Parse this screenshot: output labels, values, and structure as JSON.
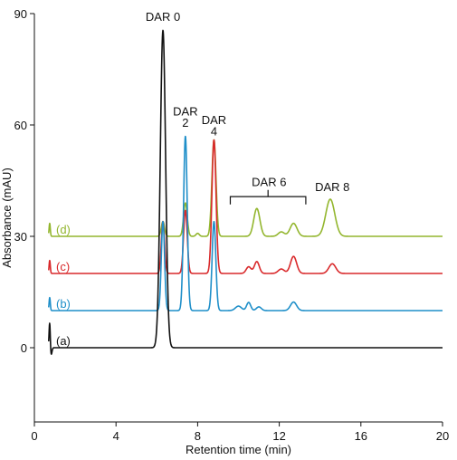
{
  "chart_data": {
    "type": "line",
    "xlabel": "Retention time (min)",
    "ylabel": "Absorbance (mAU)",
    "xlim": [
      0,
      20
    ],
    "ylim": [
      -20,
      90
    ],
    "x_ticks": [
      0,
      4,
      8,
      12,
      16,
      20
    ],
    "y_ticks": [
      0,
      30,
      60,
      90
    ],
    "grid": false,
    "legend": "none",
    "series": [
      {
        "name": "(a)",
        "color": "#111111",
        "baseline": 0,
        "peaks": [
          {
            "x": 0.75,
            "h": 7,
            "w": 0.03
          },
          {
            "x": 0.82,
            "h": -2,
            "w": 0.04
          },
          {
            "x": 6.3,
            "h": 85.5,
            "w": 0.13
          }
        ]
      },
      {
        "name": "(b)",
        "color": "#1f8fc9",
        "baseline": 10,
        "peaks": [
          {
            "x": 0.75,
            "h": 3.5,
            "w": 0.03
          },
          {
            "x": 6.3,
            "h": 24,
            "w": 0.08
          },
          {
            "x": 7.4,
            "h": 47,
            "w": 0.09
          },
          {
            "x": 8.8,
            "h": 24,
            "w": 0.09
          },
          {
            "x": 10.0,
            "h": 1.2,
            "w": 0.15
          },
          {
            "x": 10.5,
            "h": 2.2,
            "w": 0.1
          },
          {
            "x": 11.0,
            "h": 1.0,
            "w": 0.12
          },
          {
            "x": 12.7,
            "h": 2.3,
            "w": 0.15
          }
        ]
      },
      {
        "name": "(c)",
        "color": "#d9292b",
        "baseline": 20,
        "peaks": [
          {
            "x": 0.75,
            "h": 3.5,
            "w": 0.03
          },
          {
            "x": 6.3,
            "h": 14,
            "w": 0.08
          },
          {
            "x": 7.4,
            "h": 17,
            "w": 0.09
          },
          {
            "x": 8.8,
            "h": 36,
            "w": 0.1
          },
          {
            "x": 10.5,
            "h": 1.8,
            "w": 0.12
          },
          {
            "x": 10.9,
            "h": 3.2,
            "w": 0.12
          },
          {
            "x": 12.1,
            "h": 1.2,
            "w": 0.15
          },
          {
            "x": 12.7,
            "h": 4.6,
            "w": 0.15
          },
          {
            "x": 14.6,
            "h": 2.6,
            "w": 0.17
          }
        ]
      },
      {
        "name": "(d)",
        "color": "#93b62e",
        "baseline": 30,
        "peaks": [
          {
            "x": 0.75,
            "h": 3.5,
            "w": 0.03
          },
          {
            "x": 6.3,
            "h": 4,
            "w": 0.08
          },
          {
            "x": 7.4,
            "h": 9,
            "w": 0.09
          },
          {
            "x": 8.0,
            "h": 0.8,
            "w": 0.08
          },
          {
            "x": 8.8,
            "h": 26,
            "w": 0.1
          },
          {
            "x": 10.9,
            "h": 7.5,
            "w": 0.15
          },
          {
            "x": 12.1,
            "h": 1.2,
            "w": 0.15
          },
          {
            "x": 12.7,
            "h": 3.5,
            "w": 0.17
          },
          {
            "x": 14.5,
            "h": 10,
            "w": 0.22
          }
        ]
      }
    ],
    "annotations": [
      {
        "text": "DAR 0",
        "x": 6.3,
        "y": 88
      },
      {
        "text": "DAR",
        "x": 7.4,
        "y": 62.6
      },
      {
        "text": "2",
        "x": 7.4,
        "y": 59.5
      },
      {
        "text": "DAR",
        "x": 8.8,
        "y": 60.2
      },
      {
        "text": "4",
        "x": 8.8,
        "y": 57.2
      },
      {
        "text": "DAR 6",
        "x": 11.5,
        "y": 43.5
      },
      {
        "text": "DAR 8",
        "x": 14.6,
        "y": 42.2
      }
    ],
    "dar6_bracket": {
      "x0": 9.6,
      "x1": 13.3
    }
  }
}
